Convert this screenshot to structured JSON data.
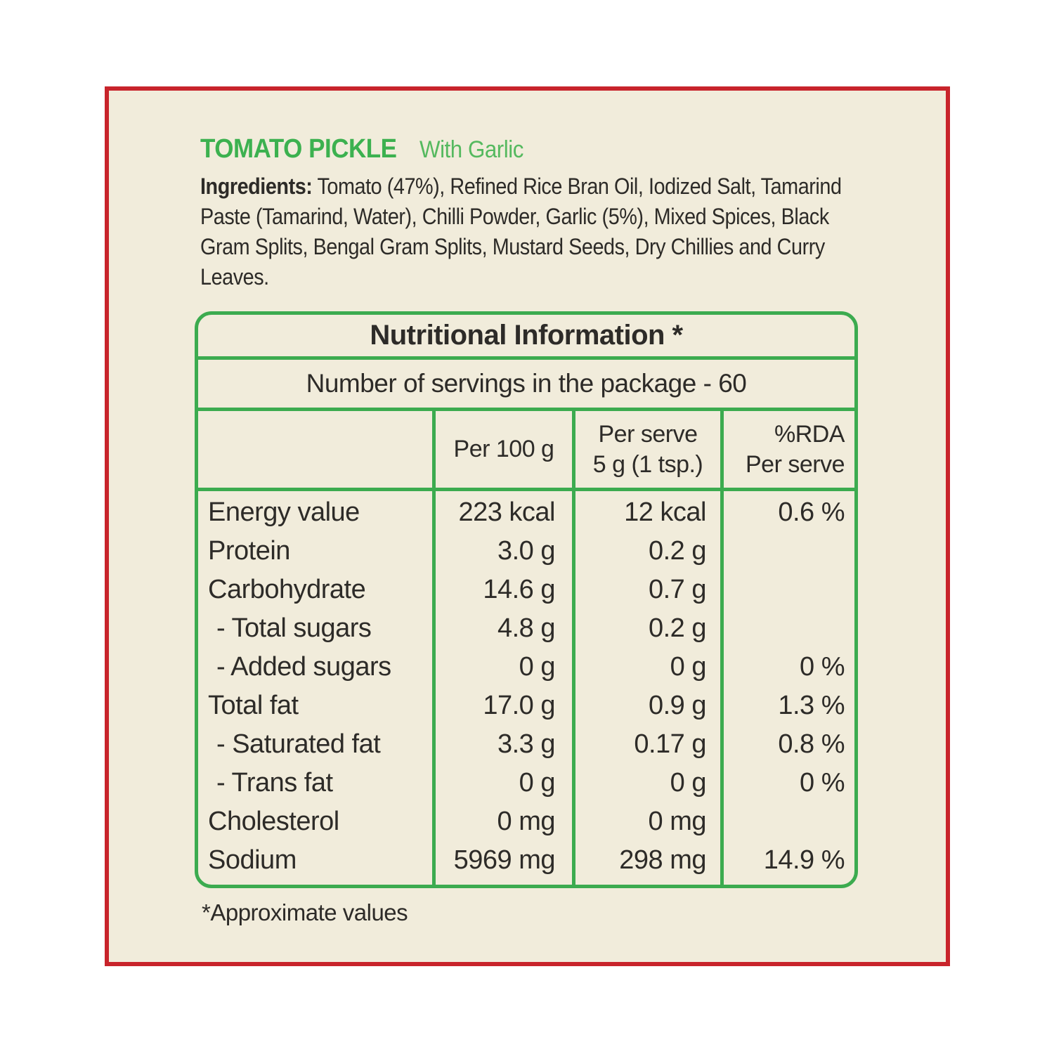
{
  "header": {
    "title": "TOMATO PICKLE",
    "subtitle": "With Garlic"
  },
  "ingredients": {
    "bold_label": "Ingredients:",
    "line1_rest": " Tomato (47%), Refined Rice Bran Oil, Iodized Salt, Tamarind",
    "line2": "Paste (Tamarind, Water), Chilli Powder, Garlic (5%), Mixed Spices, Black",
    "line3": "Gram Splits, Bengal Gram Splits, Mustard Seeds, Dry Chillies and Curry",
    "line4": "Leaves."
  },
  "table": {
    "title": "Nutritional Information *",
    "servings": "Number of servings in the package - 60",
    "columns": {
      "per100": "Per 100 g",
      "perServeLine1": "Per serve",
      "perServeLine2": "5 g (1 tsp.)",
      "rdaLine1": "%RDA",
      "rdaLine2": "Per serve"
    },
    "rows": [
      {
        "label": "Energy value",
        "per100": "223 kcal",
        "serve": "12 kcal",
        "rda": "0.6 %"
      },
      {
        "label": "Protein",
        "per100": "3.0 g",
        "serve": "0.2 g",
        "rda": ""
      },
      {
        "label": "Carbohydrate",
        "per100": "14.6 g",
        "serve": "0.7 g",
        "rda": ""
      },
      {
        "label": "- Total sugars",
        "per100": "4.8 g",
        "serve": "0.2 g",
        "rda": ""
      },
      {
        "label": "- Added sugars",
        "per100": "0 g",
        "serve": "0 g",
        "rda": "0 %"
      },
      {
        "label": "Total fat",
        "per100": "17.0 g",
        "serve": "0.9 g",
        "rda": "1.3 %"
      },
      {
        "label": "- Saturated fat",
        "per100": "3.3 g",
        "serve": "0.17 g",
        "rda": "0.8 %"
      },
      {
        "label": "- Trans fat",
        "per100": "0 g",
        "serve": "0 g",
        "rda": "0 %"
      },
      {
        "label": "Cholesterol",
        "per100": "0 mg",
        "serve": "0 mg",
        "rda": ""
      },
      {
        "label": "Sodium",
        "per100": "5969 mg",
        "serve": "298 mg",
        "rda": "14.9 %"
      }
    ]
  },
  "footnote": "*Approximate values",
  "colors": {
    "border_red": "#c8242b",
    "table_green": "#3cab4f",
    "title_green": "#3cb14f",
    "subtitle_green": "#55b95f",
    "background_cream": "#f1ecdb",
    "text": "#2d2b28"
  }
}
